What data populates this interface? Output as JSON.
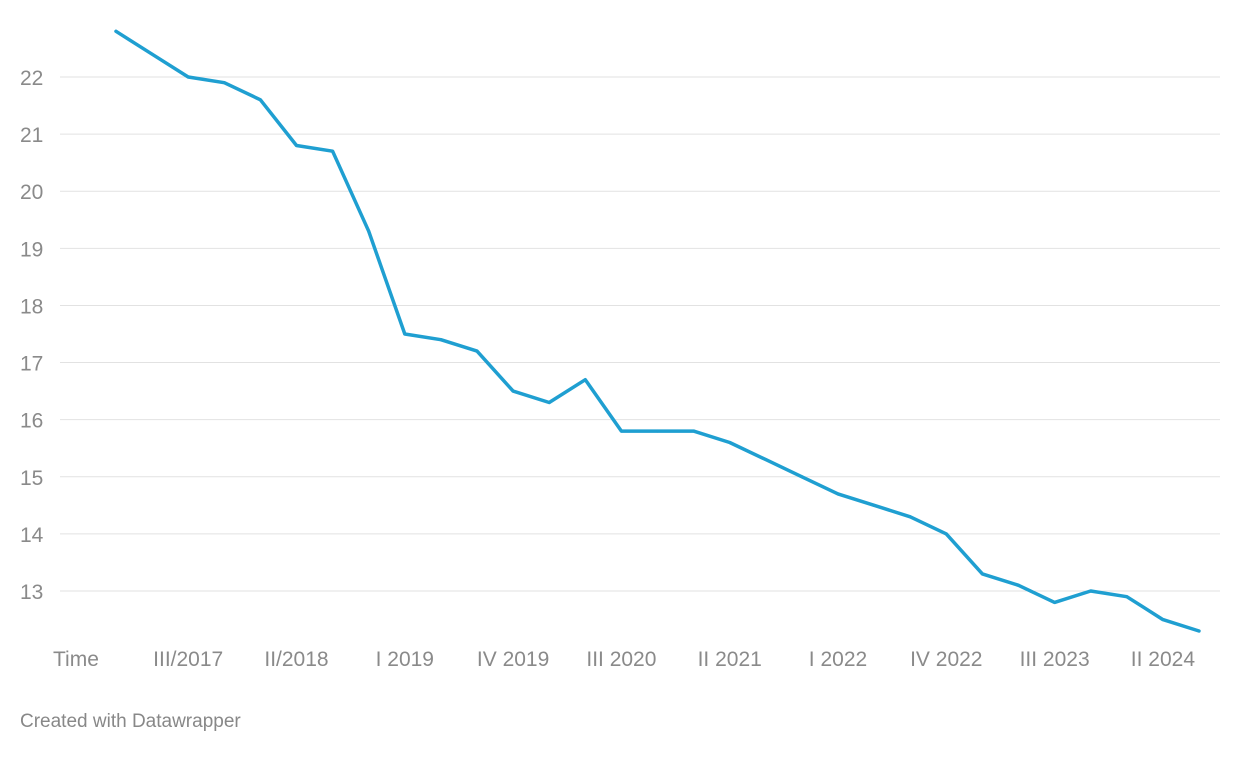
{
  "chart_data": {
    "type": "line",
    "title": "",
    "xlabel": "",
    "ylabel": "",
    "ylim": [
      12.3,
      22.8
    ],
    "y_ticks": [
      13,
      14,
      15,
      16,
      17,
      18,
      19,
      20,
      21,
      22
    ],
    "x_tick_labels": [
      "Time",
      "III/2017",
      "II/2018",
      "I 2019",
      "IV 2019",
      "III 2020",
      "II 2021",
      "I 2022",
      "IV 2022",
      "III 2023",
      "II 2024"
    ],
    "x_tick_indices": [
      -1,
      2,
      5,
      8,
      11,
      14,
      17,
      20,
      23,
      26,
      29
    ],
    "grid": true,
    "color": "#1f9fd1",
    "series": [
      {
        "values": [
          22.8,
          22.4,
          22.0,
          21.9,
          21.6,
          20.8,
          20.7,
          19.3,
          17.5,
          17.4,
          17.2,
          16.5,
          16.3,
          16.7,
          15.8,
          15.8,
          15.8,
          15.6,
          15.3,
          15.0,
          14.7,
          14.5,
          14.3,
          14.0,
          13.3,
          13.1,
          12.8,
          13.0,
          12.9,
          12.5,
          12.3
        ]
      }
    ]
  },
  "footer": {
    "credit": "Created with Datawrapper"
  }
}
